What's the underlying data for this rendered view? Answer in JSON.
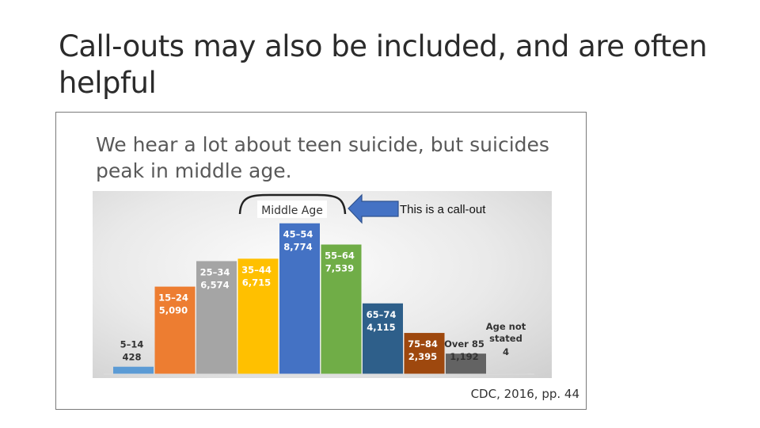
{
  "slide": {
    "title": "Call-outs may also be included, and are often helpful"
  },
  "figure": {
    "headline": "We hear a lot about teen suicide, but suicides peak in middle age.",
    "callout": "This is a call-out",
    "bracket_label": "Middle Age",
    "source": "CDC, 2016, pp. 44"
  },
  "chart_data": {
    "type": "bar",
    "title": "",
    "xlabel": "",
    "ylabel": "",
    "ylim": [
      0,
      9500
    ],
    "categories": [
      "5–14",
      "15–24",
      "25–34",
      "35–44",
      "45–54",
      "55–64",
      "65–74",
      "75–84",
      "Over 85",
      "Age not stated"
    ],
    "labels": [
      "428",
      "5,090",
      "6,574",
      "6,715",
      "8,774",
      "7,539",
      "4,115",
      "2,395",
      "1,192",
      "4"
    ],
    "values": [
      428,
      5090,
      6574,
      6715,
      8774,
      7539,
      4115,
      2395,
      1192,
      4
    ],
    "colors": [
      "#5b9bd5",
      "#ed7d31",
      "#a5a5a5",
      "#ffc000",
      "#4472c4",
      "#70ad47",
      "#2e5f8a",
      "#9e480e",
      "#636363",
      "#cfcfcf"
    ],
    "label_colors": [
      "#333333",
      "#ffffff",
      "#ffffff",
      "#ffffff",
      "#ffffff",
      "#ffffff",
      "#ffffff",
      "#ffffff",
      "#333333",
      "#333333"
    ],
    "label_inside": [
      false,
      true,
      true,
      true,
      true,
      true,
      true,
      true,
      false,
      false
    ],
    "grid": false,
    "legend": "none"
  }
}
